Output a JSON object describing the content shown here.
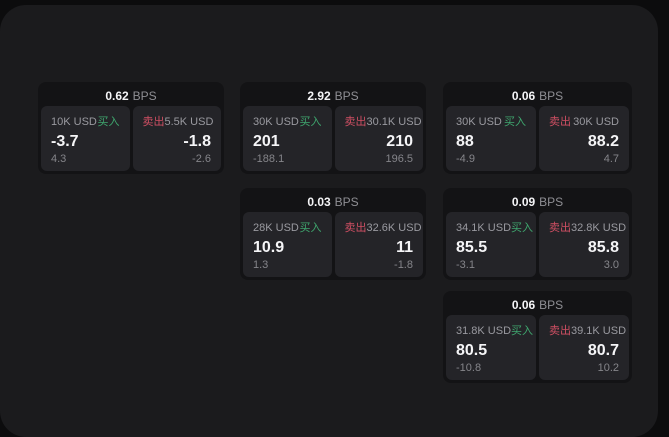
{
  "labels": {
    "bps_unit": "BPS",
    "buy": "买入",
    "sell": "卖出"
  },
  "colors": {
    "outer-bg": "#0c0c0d",
    "window-bg": "#1b1b1d",
    "card-bg": "#131315",
    "panel-bg": "#242428",
    "white-text": "#f5f5f7",
    "dim-text": "#8f8f94",
    "label-text": "#9a9aa0",
    "sub-text": "#85858a",
    "buy-green": "#3fa66e",
    "sell-red": "#cf4f63"
  },
  "cards": [
    {
      "bps": "0.62",
      "buy": {
        "size": "10K USD",
        "price": "-3.7",
        "sub": "4.3"
      },
      "sell": {
        "size": "5.5K USD",
        "price": "-1.8",
        "sub": "-2.6"
      }
    },
    {
      "bps": "2.92",
      "buy": {
        "size": "30K USD",
        "price": "201",
        "sub": "-188.1"
      },
      "sell": {
        "size": "30.1K USD",
        "price": "210",
        "sub": "196.5"
      }
    },
    {
      "bps": "0.06",
      "buy": {
        "size": "30K USD",
        "price": "88",
        "sub": "-4.9"
      },
      "sell": {
        "size": "30K USD",
        "price": "88.2",
        "sub": "4.7"
      }
    },
    {
      "bps": "0.03",
      "buy": {
        "size": "28K USD",
        "price": "10.9",
        "sub": "1.3"
      },
      "sell": {
        "size": "32.6K USD",
        "price": "11",
        "sub": "-1.8"
      }
    },
    {
      "bps": "0.09",
      "buy": {
        "size": "34.1K USD",
        "price": "85.5",
        "sub": "-3.1"
      },
      "sell": {
        "size": "32.8K USD",
        "price": "85.8",
        "sub": "3.0"
      }
    },
    {
      "bps": "0.06",
      "buy": {
        "size": "31.8K USD",
        "price": "80.5",
        "sub": "-10.8"
      },
      "sell": {
        "size": "39.1K USD",
        "price": "80.7",
        "sub": "10.2"
      }
    }
  ]
}
